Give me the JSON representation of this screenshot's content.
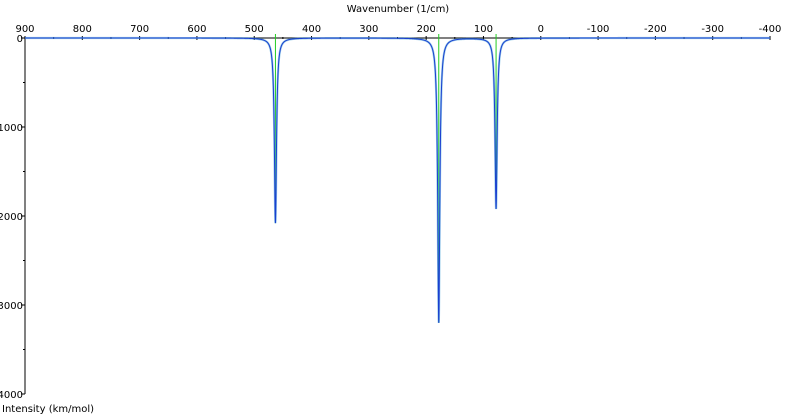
{
  "chart_data": {
    "type": "line",
    "title": "",
    "xlabel": "Wavenumber (1/cm)",
    "ylabel": "Intensity (km/mol)",
    "xlim": [
      900,
      -400
    ],
    "ylim": [
      0,
      4000
    ],
    "y_inverted": true,
    "x_ticks": [
      900,
      800,
      700,
      600,
      500,
      400,
      300,
      200,
      100,
      0,
      -100,
      -200,
      -300,
      -400
    ],
    "y_ticks": [
      0,
      1000,
      2000,
      3000,
      4000
    ],
    "grid": false,
    "legend": "none",
    "peaks": [
      {
        "x": 463,
        "y": 2080
      },
      {
        "x": 178,
        "y": 3200
      },
      {
        "x": 78,
        "y": 1920
      }
    ],
    "colors": {
      "spectrum": "#1a3fd0",
      "spectrum_light": "#4aa6d8",
      "stick": "#22cc22",
      "axis": "#000000",
      "baseline": "#3a78c8"
    }
  }
}
